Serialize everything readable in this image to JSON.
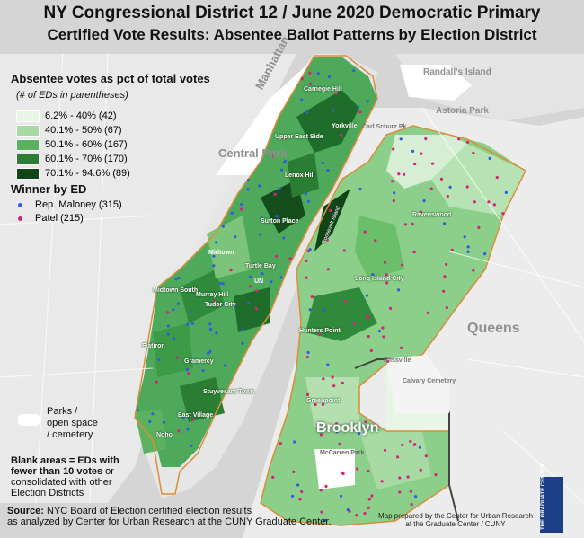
{
  "title": {
    "line1": "NY Congressional District 12 / June 2020 Democratic Primary",
    "line2": "Certified Vote Results: Absentee Ballot Patterns by Election District"
  },
  "legend": {
    "heading": "Absentee votes as pct of total votes",
    "subheading": "(# of EDs in parentheses)",
    "classes": [
      {
        "label": "6.2% - 40% (42)",
        "color": "#e8f6e6"
      },
      {
        "label": "40.1% - 50% (67)",
        "color": "#a7dba3"
      },
      {
        "label": "50.1% - 60% (167)",
        "color": "#5bb15d"
      },
      {
        "label": "60.1% - 70% (170)",
        "color": "#2a7d33"
      },
      {
        "label": "70.1% - 94.6% (89)",
        "color": "#0f4517"
      }
    ]
  },
  "winner": {
    "heading": "Winner by ED",
    "items": [
      {
        "label": "Rep. Maloney (315)",
        "color": "#2f5de0"
      },
      {
        "label": "Patel (215)",
        "color": "#d4237e"
      }
    ]
  },
  "parks": {
    "label": "Parks / open space / cemetery"
  },
  "blank_note": {
    "bold": "Blank areas = EDs with fewer than 10 votes",
    "rest": "or consolidated with other Election Districts"
  },
  "source": {
    "label": "Source:",
    "line1": "NYC Board of Election certified election results",
    "line2": "as analyzed by Center for Urban Research at the CUNY Graduate Center."
  },
  "credit": "Map prepared by the Center for Urban Research at the Graduate Center / CUNY",
  "logo_text": "THE GRADUATE CENTER",
  "places": {
    "manhattan": "Manhattan",
    "central_park": "Central Park",
    "randalls_island": "Randall's Island",
    "astoria_park": "Astoria Park",
    "queens": "Queens",
    "brooklyn": "Brooklyn",
    "blissville": "Blissville",
    "calvary_cemetery": "Calvary Cemetery",
    "midtown": "Midtown",
    "un": "UN",
    "mccarren_park": "McCarren Park",
    "carl_schurz": "Carl Schurz Pk"
  },
  "neighborhoods": {
    "carnegie_hill": "Carnegie Hill",
    "yorkville": "Yorkville",
    "upper_east_side": "Upper East Side",
    "lenox_hill": "Lenox Hill",
    "sutton_place": "Sutton Place",
    "turtle_bay": "Turtle Bay",
    "midtown_south": "Midtown South",
    "murray_hill": "Murray Hill",
    "tudor_city": "Tudor City",
    "flatiron": "Flatiron",
    "gramercy": "Gramercy",
    "stuyvesant_town": "Stuyvesant Town",
    "east_village": "East Village",
    "noho": "Noho",
    "hunters_point": "Hunters Point",
    "long_island_city": "Long Island City",
    "ravenswood": "Ravenswood",
    "greenpoint": "Greenpoint",
    "roosevelt_island": "Roosevelt Island"
  }
}
